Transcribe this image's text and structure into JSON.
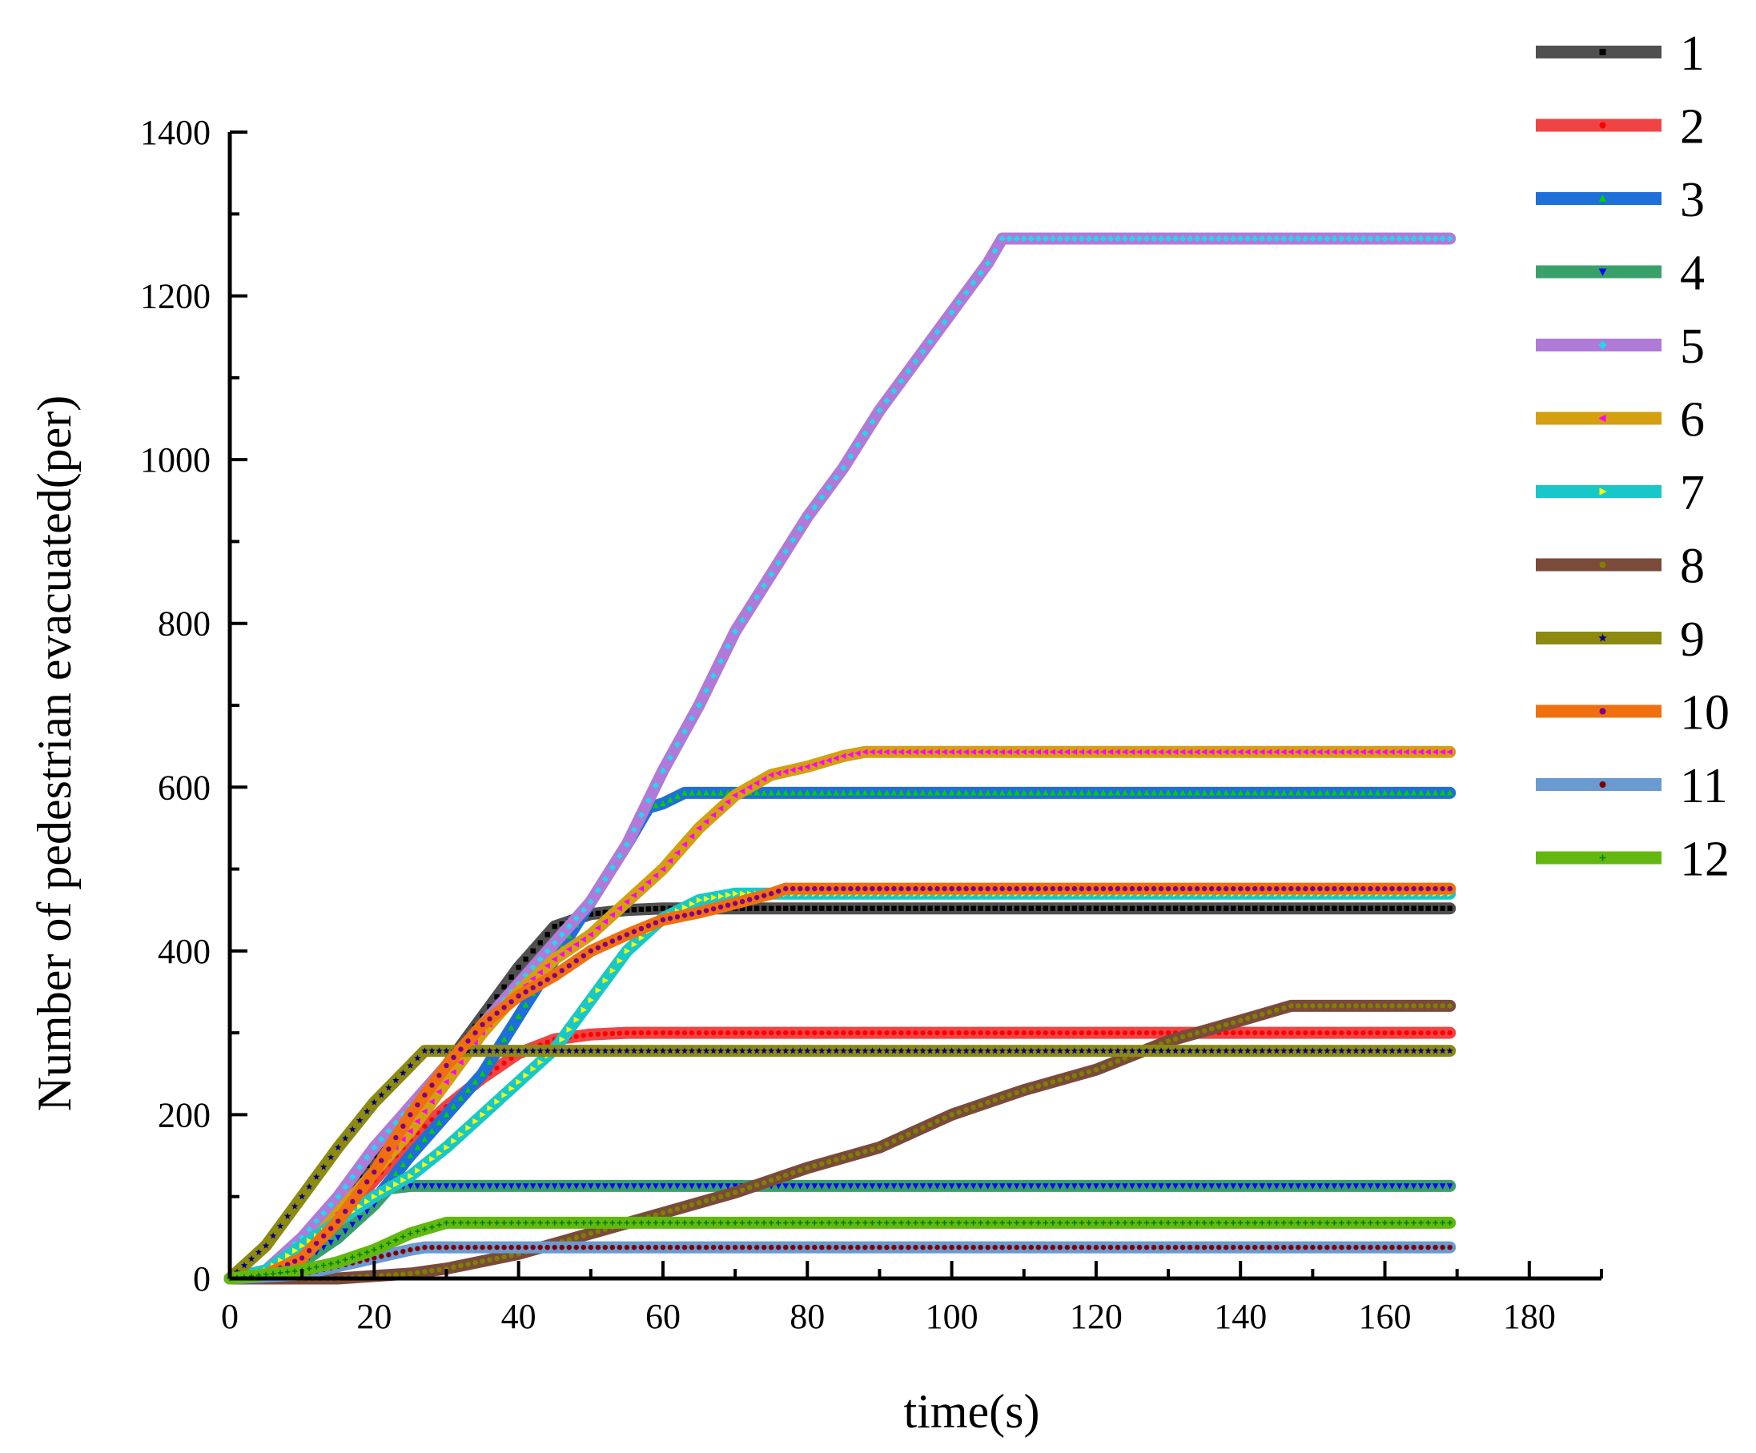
{
  "chart_data": {
    "type": "line",
    "xlabel": "time(s)",
    "ylabel": "Number of pedestrian evacuated(per)",
    "xlim": [
      0,
      190
    ],
    "ylim": [
      0,
      1400
    ],
    "x_ticks": [
      0,
      20,
      40,
      60,
      80,
      100,
      120,
      140,
      160,
      180
    ],
    "y_ticks": [
      0,
      200,
      400,
      600,
      800,
      1000,
      1200,
      1400
    ],
    "x_tick_labels": [
      "0",
      "20",
      "40",
      "60",
      "80",
      "100",
      "120",
      "140",
      "160",
      "180"
    ],
    "y_tick_labels": [
      "0",
      "200",
      "400",
      "600",
      "800",
      "1000",
      "1200",
      "1400"
    ],
    "legend_position": "top-right",
    "series": [
      {
        "name": "1",
        "color": "#505050",
        "marker_color": "#000000",
        "marker": "square",
        "points": [
          [
            0,
            0
          ],
          [
            5,
            8
          ],
          [
            10,
            40
          ],
          [
            15,
            90
          ],
          [
            20,
            150
          ],
          [
            25,
            210
          ],
          [
            30,
            260
          ],
          [
            35,
            320
          ],
          [
            40,
            380
          ],
          [
            45,
            430
          ],
          [
            50,
            445
          ],
          [
            55,
            450
          ],
          [
            60,
            452
          ],
          [
            169,
            452
          ]
        ]
      },
      {
        "name": "2",
        "color": "#ee4444",
        "marker_color": "#ff0000",
        "marker": "circle",
        "points": [
          [
            0,
            0
          ],
          [
            5,
            5
          ],
          [
            10,
            30
          ],
          [
            15,
            70
          ],
          [
            20,
            120
          ],
          [
            25,
            170
          ],
          [
            30,
            210
          ],
          [
            35,
            245
          ],
          [
            40,
            275
          ],
          [
            45,
            292
          ],
          [
            50,
            298
          ],
          [
            55,
            300
          ],
          [
            169,
            300
          ]
        ]
      },
      {
        "name": "3",
        "color": "#1f6fd8",
        "marker_color": "#00d000",
        "marker": "triangle-up",
        "points": [
          [
            0,
            0
          ],
          [
            5,
            5
          ],
          [
            10,
            20
          ],
          [
            15,
            50
          ],
          [
            20,
            95
          ],
          [
            25,
            150
          ],
          [
            30,
            200
          ],
          [
            35,
            250
          ],
          [
            40,
            320
          ],
          [
            45,
            390
          ],
          [
            50,
            460
          ],
          [
            55,
            530
          ],
          [
            58,
            575
          ],
          [
            60,
            580
          ],
          [
            63,
            593
          ],
          [
            169,
            593
          ]
        ]
      },
      {
        "name": "4",
        "color": "#3aa06a",
        "marker_color": "#0000ff",
        "marker": "triangle-down",
        "points": [
          [
            0,
            0
          ],
          [
            5,
            5
          ],
          [
            10,
            20
          ],
          [
            15,
            50
          ],
          [
            20,
            90
          ],
          [
            22,
            110
          ],
          [
            25,
            113
          ],
          [
            169,
            113
          ]
        ]
      },
      {
        "name": "5",
        "color": "#b07ad8",
        "marker_color": "#22d8ee",
        "marker": "diamond",
        "points": [
          [
            0,
            0
          ],
          [
            5,
            10
          ],
          [
            10,
            50
          ],
          [
            15,
            100
          ],
          [
            20,
            160
          ],
          [
            25,
            210
          ],
          [
            30,
            260
          ],
          [
            35,
            310
          ],
          [
            40,
            360
          ],
          [
            45,
            410
          ],
          [
            50,
            460
          ],
          [
            55,
            530
          ],
          [
            60,
            620
          ],
          [
            65,
            700
          ],
          [
            70,
            790
          ],
          [
            75,
            860
          ],
          [
            80,
            930
          ],
          [
            85,
            990
          ],
          [
            90,
            1060
          ],
          [
            95,
            1120
          ],
          [
            100,
            1180
          ],
          [
            105,
            1240
          ],
          [
            107,
            1270
          ],
          [
            169,
            1270
          ]
        ]
      },
      {
        "name": "6",
        "color": "#d4a010",
        "marker_color": "#ff00ff",
        "marker": "triangle-left",
        "points": [
          [
            0,
            0
          ],
          [
            5,
            5
          ],
          [
            10,
            30
          ],
          [
            15,
            80
          ],
          [
            20,
            130
          ],
          [
            25,
            180
          ],
          [
            30,
            240
          ],
          [
            35,
            300
          ],
          [
            40,
            350
          ],
          [
            45,
            390
          ],
          [
            50,
            420
          ],
          [
            55,
            460
          ],
          [
            60,
            500
          ],
          [
            65,
            550
          ],
          [
            70,
            590
          ],
          [
            75,
            615
          ],
          [
            80,
            625
          ],
          [
            85,
            638
          ],
          [
            88,
            643
          ],
          [
            169,
            643
          ]
        ]
      },
      {
        "name": "7",
        "color": "#18c8c8",
        "marker_color": "#ffff00",
        "marker": "triangle-right",
        "points": [
          [
            0,
            0
          ],
          [
            5,
            10
          ],
          [
            10,
            40
          ],
          [
            15,
            70
          ],
          [
            20,
            100
          ],
          [
            25,
            125
          ],
          [
            30,
            160
          ],
          [
            35,
            200
          ],
          [
            40,
            240
          ],
          [
            45,
            280
          ],
          [
            50,
            340
          ],
          [
            55,
            400
          ],
          [
            60,
            440
          ],
          [
            65,
            462
          ],
          [
            70,
            470
          ],
          [
            169,
            470
          ]
        ]
      },
      {
        "name": "8",
        "color": "#7a4a3a",
        "marker_color": "#808000",
        "marker": "hexagon",
        "points": [
          [
            0,
            0
          ],
          [
            15,
            0
          ],
          [
            20,
            3
          ],
          [
            25,
            6
          ],
          [
            30,
            12
          ],
          [
            40,
            30
          ],
          [
            50,
            55
          ],
          [
            60,
            80
          ],
          [
            70,
            105
          ],
          [
            80,
            135
          ],
          [
            90,
            160
          ],
          [
            100,
            200
          ],
          [
            110,
            230
          ],
          [
            120,
            255
          ],
          [
            130,
            290
          ],
          [
            140,
            315
          ],
          [
            147,
            333
          ],
          [
            169,
            333
          ]
        ]
      },
      {
        "name": "9",
        "color": "#8c8a10",
        "marker_color": "#000080",
        "marker": "star",
        "points": [
          [
            0,
            0
          ],
          [
            5,
            40
          ],
          [
            10,
            100
          ],
          [
            15,
            160
          ],
          [
            20,
            215
          ],
          [
            25,
            260
          ],
          [
            27,
            278
          ],
          [
            169,
            278
          ]
        ]
      },
      {
        "name": "10",
        "color": "#f07010",
        "marker_color": "#800080",
        "marker": "pentagon",
        "points": [
          [
            0,
            0
          ],
          [
            5,
            5
          ],
          [
            10,
            25
          ],
          [
            15,
            70
          ],
          [
            20,
            130
          ],
          [
            25,
            200
          ],
          [
            30,
            260
          ],
          [
            35,
            310
          ],
          [
            40,
            345
          ],
          [
            45,
            370
          ],
          [
            50,
            400
          ],
          [
            55,
            420
          ],
          [
            60,
            438
          ],
          [
            65,
            447
          ],
          [
            70,
            458
          ],
          [
            75,
            470
          ],
          [
            77,
            476
          ],
          [
            169,
            476
          ]
        ]
      },
      {
        "name": "11",
        "color": "#6a9ad0",
        "marker_color": "#800000",
        "marker": "circle",
        "points": [
          [
            0,
            0
          ],
          [
            10,
            5
          ],
          [
            15,
            15
          ],
          [
            20,
            25
          ],
          [
            25,
            35
          ],
          [
            27,
            38
          ],
          [
            169,
            38
          ]
        ]
      },
      {
        "name": "12",
        "color": "#62b810",
        "marker_color": "#008000",
        "marker": "plus",
        "points": [
          [
            0,
            0
          ],
          [
            5,
            5
          ],
          [
            10,
            10
          ],
          [
            15,
            20
          ],
          [
            20,
            35
          ],
          [
            25,
            55
          ],
          [
            30,
            68
          ],
          [
            169,
            68
          ]
        ]
      }
    ]
  }
}
